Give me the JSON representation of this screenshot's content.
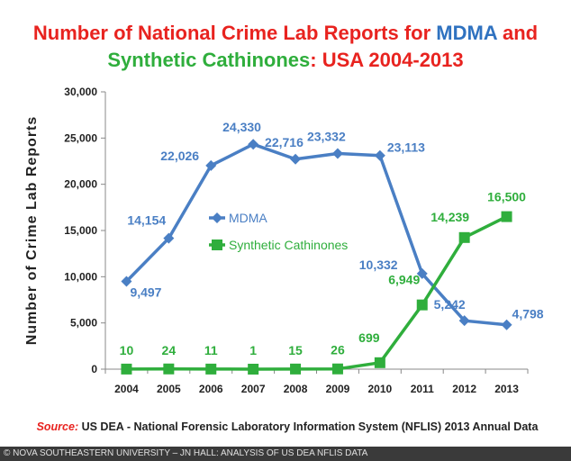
{
  "title": {
    "line1_part1": "Number of National Crime Lab Reports for ",
    "line1_part2": "MDMA",
    "line1_part3": " and",
    "line2_part1": "Synthetic Cathinones",
    "line2_part2": ": USA 2004-2013"
  },
  "source": {
    "label": "Source:",
    "text": " US DEA - National Forensic Laboratory Information System (NFLIS) 2013 Annual Data"
  },
  "credit": "© NOVA SOUTHEASTERN UNIVERSITY – JN HALL: ANALYSIS OF US DEA NFLIS DATA",
  "colors": {
    "mdma": "#4a7fc4",
    "cathinones": "#2fae3c",
    "title_red": "#e8231f"
  },
  "chart_data": {
    "type": "line",
    "title": "Number of National Crime Lab Reports for MDMA and Synthetic Cathinones: USA 2004-2013",
    "xlabel": "",
    "ylabel": "Number of Crime Lab Reports",
    "categories": [
      "2004",
      "2005",
      "2006",
      "2007",
      "2008",
      "2009",
      "2010",
      "2011",
      "2012",
      "2013"
    ],
    "ylim": [
      0,
      30000
    ],
    "yticks": [
      0,
      5000,
      10000,
      15000,
      20000,
      25000,
      30000
    ],
    "ytick_labels": [
      "0",
      "5,000",
      "10,000",
      "15,000",
      "20,000",
      "25,000",
      "30,000"
    ],
    "grid": false,
    "legend_placement": "center",
    "series": [
      {
        "name": "MDMA",
        "values": [
          9497,
          14154,
          22026,
          24330,
          22716,
          23332,
          23113,
          10332,
          5242,
          4798
        ],
        "labels": [
          "9,497",
          "14,154",
          "22,026",
          "24,330",
          "22,716",
          "23,332",
          "23,113",
          "10,332",
          "5,242",
          "4,798"
        ]
      },
      {
        "name": "Synthetic Cathinones",
        "values": [
          10,
          24,
          11,
          1,
          15,
          26,
          699,
          6949,
          14239,
          16500
        ],
        "labels": [
          "10",
          "24",
          "11",
          "1",
          "15",
          "26",
          "699",
          "6,949",
          "14,239",
          "16,500"
        ]
      }
    ]
  }
}
